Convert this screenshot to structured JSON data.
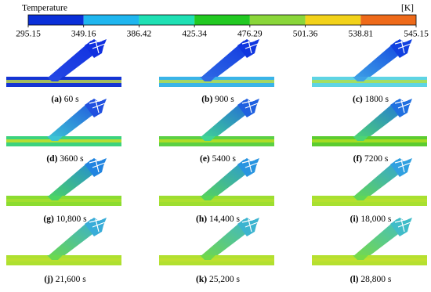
{
  "colorbar": {
    "label": "Temperature",
    "unit": "[K]",
    "ticks": [
      "295.15",
      "349.16",
      "386.42",
      "425.34",
      "476.29",
      "501.36",
      "538.81",
      "545.15"
    ],
    "colors": [
      "#0a2fd8",
      "#1fb6ef",
      "#1fe0b4",
      "#22c922",
      "#8ad63a",
      "#f2d21a",
      "#ee6a1a"
    ]
  },
  "panels": [
    {
      "tag": "(a)",
      "time": "60 s",
      "pipe": "#1434d4",
      "core": "#c8e040",
      "branch": "#2448e4",
      "tip": "#1030e0"
    },
    {
      "tag": "(b)",
      "time": "900 s",
      "pipe": "#3ab4e8",
      "core": "#c0e040",
      "branch": "#2f6ae4",
      "tip": "#1036e0"
    },
    {
      "tag": "(c)",
      "time": "1800 s",
      "pipe": "#5ed4e4",
      "core": "#b4e040",
      "branch": "#3ea2e6",
      "tip": "#1040e0"
    },
    {
      "tag": "(d)",
      "time": "3600 s",
      "pipe": "#3cd27e",
      "core": "#d4e020",
      "branch": "#3cc4d4",
      "tip": "#2050e0"
    },
    {
      "tag": "(e)",
      "time": "5400 s",
      "pipe": "#5cd044",
      "core": "#c4e020",
      "branch": "#40d494",
      "tip": "#2060e0"
    },
    {
      "tag": "(f)",
      "time": "7200 s",
      "pipe": "#5ccc30",
      "core": "#b8e020",
      "branch": "#4cd474",
      "tip": "#2070e0"
    },
    {
      "tag": "(g)",
      "time": "10,800 s",
      "pipe": "#8cdc30",
      "core": "#a8e030",
      "branch": "#4cd464",
      "tip": "#2084e0"
    },
    {
      "tag": "(h)",
      "time": "14,400 s",
      "pipe": "#9ede30",
      "core": "#b0e030",
      "branch": "#56d45a",
      "tip": "#2894e0"
    },
    {
      "tag": "(i)",
      "time": "18,000 s",
      "pipe": "#a8e030",
      "core": "#b8e030",
      "branch": "#60d656",
      "tip": "#30a0e0"
    },
    {
      "tag": "(j)",
      "time": "21,600 s",
      "pipe": "#aee030",
      "core": "#bce030",
      "branch": "#6ad850",
      "tip": "#38acd8"
    },
    {
      "tag": "(k)",
      "time": "25,200 s",
      "pipe": "#b2e030",
      "core": "#c0e030",
      "branch": "#70d84c",
      "tip": "#3cb4d0"
    },
    {
      "tag": "(l)",
      "time": "28,800 s",
      "pipe": "#b6e030",
      "core": "#c4e030",
      "branch": "#76da48",
      "tip": "#40bcc8"
    }
  ]
}
